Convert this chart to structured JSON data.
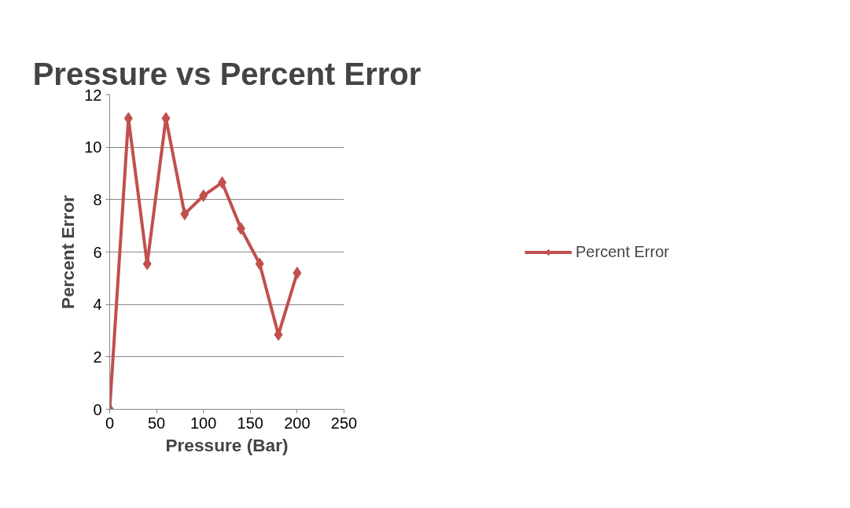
{
  "chart_data": {
    "type": "line",
    "title": "Pressure vs Percent Error",
    "xlabel": "Pressure (Bar)",
    "ylabel": "Percent Error",
    "x": [
      0,
      20,
      40,
      60,
      80,
      100,
      120,
      140,
      160,
      180,
      200
    ],
    "series": [
      {
        "name": "Percent Error",
        "color": "#c0504d",
        "values": [
          0,
          11.1,
          5.55,
          11.1,
          7.45,
          8.15,
          8.65,
          6.9,
          5.55,
          2.85,
          5.2
        ]
      }
    ],
    "xlim": [
      0,
      250
    ],
    "xticks": [
      0,
      50,
      100,
      150,
      200,
      250
    ],
    "ylim": [
      0,
      12
    ],
    "yticks": [
      0,
      2,
      4,
      6,
      8,
      10,
      12
    ],
    "grid": "y",
    "legend": "right",
    "marker": "diamond",
    "line_style": "solid"
  }
}
